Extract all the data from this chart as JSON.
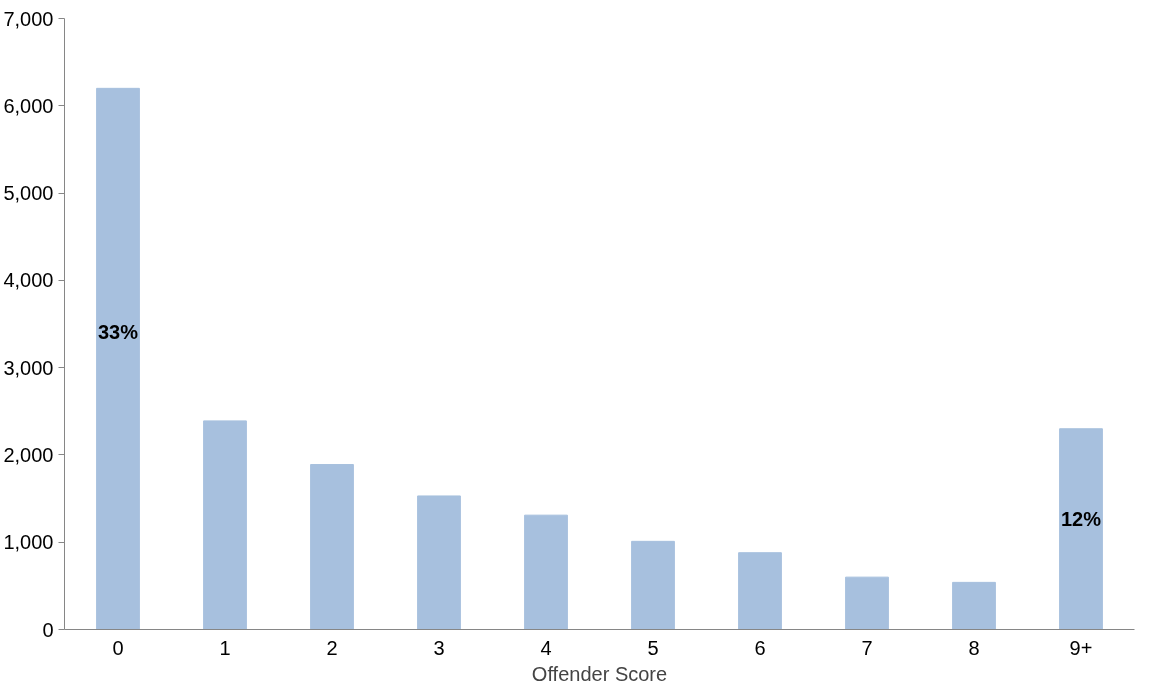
{
  "chart_data": {
    "type": "bar",
    "xlabel": "Offender Score",
    "categories": [
      "0",
      "1",
      "2",
      "3",
      "4",
      "5",
      "6",
      "7",
      "8",
      "9+"
    ],
    "values": [
      6200,
      2390,
      1890,
      1530,
      1310,
      1010,
      880,
      600,
      540,
      2300
    ],
    "color": "#a7c0de",
    "ylim": [
      0,
      7000
    ],
    "yticks": [
      {
        "value": 0,
        "label": "0"
      },
      {
        "value": 1000,
        "label": "1,000"
      },
      {
        "value": 2000,
        "label": "2,000"
      },
      {
        "value": 3000,
        "label": "3,000"
      },
      {
        "value": 4000,
        "label": "4,000"
      },
      {
        "value": 5000,
        "label": "5,000"
      },
      {
        "value": 6000,
        "label": "6,000"
      },
      {
        "value": 7000,
        "label": "7,000"
      }
    ],
    "grid": false,
    "annotations": [
      "33%",
      "12%"
    ]
  }
}
